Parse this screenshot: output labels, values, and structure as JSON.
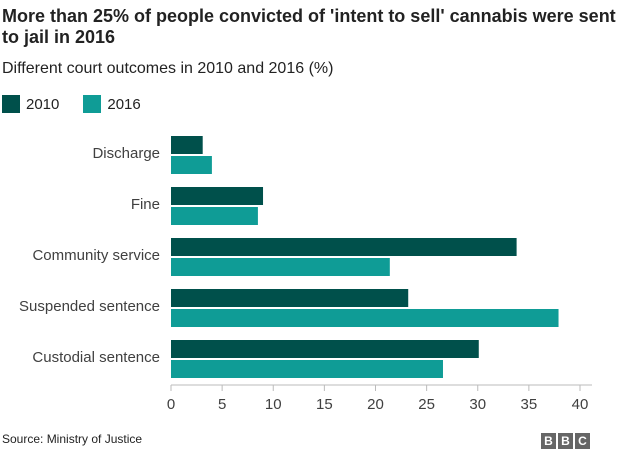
{
  "chart_data": {
    "type": "bar",
    "orientation": "horizontal",
    "title": "More than 25% of people convicted of 'intent to sell' cannabis were sent to jail in 2016",
    "subtitle": "Different court outcomes in 2010 and 2016 (%)",
    "categories": [
      "Discharge",
      "Fine",
      "Community service",
      "Suspended sentence",
      "Custodial sentence"
    ],
    "series": [
      {
        "name": "2010",
        "color": "#00504b",
        "values": [
          3.1,
          9.0,
          33.8,
          23.2,
          30.1
        ]
      },
      {
        "name": "2016",
        "color": "#0f9c96",
        "values": [
          4.0,
          8.5,
          21.4,
          37.9,
          26.6
        ]
      }
    ],
    "xlim": [
      0,
      40
    ],
    "xticks": [
      0,
      5,
      10,
      15,
      20,
      25,
      30,
      35,
      40
    ],
    "grid": false,
    "legend_position": "top-left",
    "source": "Source: Ministry of Justice"
  },
  "logo": [
    "B",
    "B",
    "C"
  ]
}
